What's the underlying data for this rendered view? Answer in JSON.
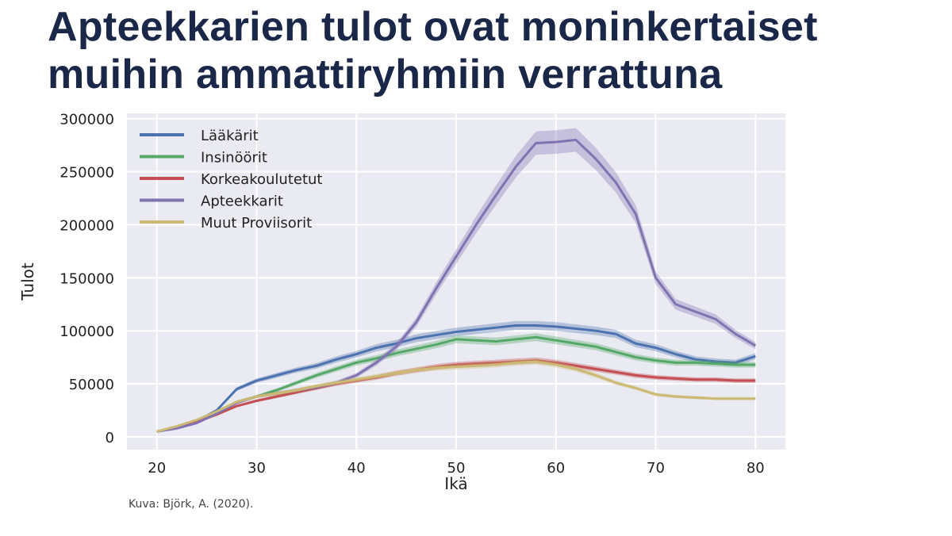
{
  "slide": {
    "title_line1": "Apteekkarien tulot ovat moninkertaiset",
    "title_line2": "muihin ammattiryhmiin verrattuna",
    "caption": "Kuva: Björk, A. (2020)."
  },
  "chart_data": {
    "type": "line",
    "title": "",
    "xlabel": "Ikä",
    "ylabel": "Tulot",
    "xlim": [
      17,
      83
    ],
    "ylim": [
      -12000,
      305000
    ],
    "xticks": [
      20,
      30,
      40,
      50,
      60,
      70,
      80
    ],
    "yticks": [
      0,
      50000,
      100000,
      150000,
      200000,
      250000,
      300000
    ],
    "grid": true,
    "legend_position": "top-left",
    "x": [
      20,
      22,
      24,
      26,
      28,
      30,
      32,
      34,
      36,
      38,
      40,
      42,
      44,
      46,
      48,
      50,
      52,
      54,
      56,
      58,
      60,
      62,
      64,
      66,
      68,
      70,
      72,
      74,
      76,
      78,
      80
    ],
    "series": [
      {
        "name": "Lääkärit",
        "color": "#4c72b0",
        "values": [
          5000,
          9000,
          15000,
          25000,
          45000,
          53000,
          58000,
          63000,
          67000,
          73000,
          78000,
          84000,
          88000,
          93000,
          96000,
          99000,
          101000,
          103000,
          105000,
          105000,
          104000,
          102000,
          100000,
          97000,
          88000,
          84000,
          78000,
          73000,
          71000,
          70000,
          76000
        ]
      },
      {
        "name": "Insinöörit",
        "color": "#55a868",
        "values": [
          5000,
          9000,
          15000,
          23000,
          33000,
          38000,
          44000,
          51000,
          58000,
          64000,
          70000,
          74000,
          79000,
          83000,
          87000,
          92000,
          91000,
          90000,
          92000,
          94000,
          91000,
          88000,
          85000,
          80000,
          75000,
          72000,
          70000,
          70000,
          69000,
          68000,
          68000
        ]
      },
      {
        "name": "Korkeakoulutetut",
        "color": "#c44e52",
        "values": [
          5000,
          9000,
          14000,
          21000,
          29000,
          34000,
          38000,
          42000,
          46000,
          50000,
          53000,
          56000,
          60000,
          63000,
          66000,
          68000,
          69000,
          70000,
          71000,
          72000,
          70000,
          67000,
          64000,
          61000,
          58000,
          56000,
          55000,
          54000,
          54000,
          53000,
          53000
        ]
      },
      {
        "name": "Apteekkarit",
        "color": "#8172b2",
        "values": [
          5000,
          8000,
          13000,
          22000,
          32000,
          38000,
          41000,
          44000,
          47000,
          51000,
          58000,
          70000,
          85000,
          108000,
          140000,
          170000,
          200000,
          228000,
          255000,
          277000,
          278000,
          280000,
          262000,
          240000,
          210000,
          150000,
          125000,
          118000,
          111000,
          97000,
          86000
        ]
      },
      {
        "name": "Muut Proviisorit",
        "color": "#ccb974",
        "values": [
          5000,
          10000,
          16000,
          24000,
          33000,
          38000,
          41000,
          44000,
          48000,
          51000,
          54000,
          57000,
          60000,
          63000,
          65000,
          66000,
          67000,
          68000,
          70000,
          71000,
          68000,
          64000,
          58000,
          51000,
          46000,
          40000,
          38000,
          37000,
          36000,
          36000,
          36000
        ]
      }
    ]
  }
}
